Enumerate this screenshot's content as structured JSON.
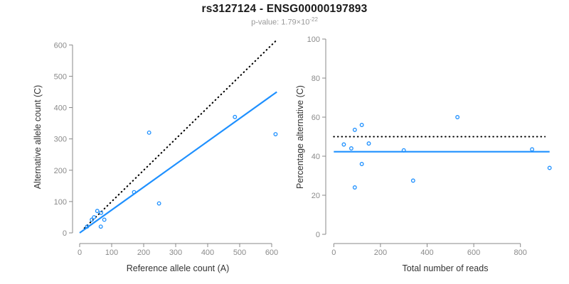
{
  "header": {
    "title": "rs3127124 - ENSG00000197893",
    "pvalue_label": "p-value: 1.79×10",
    "pvalue_exponent": "-22"
  },
  "colors": {
    "accent_blue": "#1E90FF",
    "dotted_black": "#000000",
    "axis_gray": "#888888",
    "tick_label_gray": "#8a8a8a",
    "axis_title_dark": "#333333"
  },
  "chart_data": [
    {
      "type": "scatter",
      "name": "allele-count-scatter",
      "xlabel": "Reference allele count (A)",
      "ylabel": "Alternative allele count (C)",
      "xlim": [
        0,
        600
      ],
      "ylim": [
        0,
        600
      ],
      "xticks": [
        0,
        100,
        200,
        300,
        400,
        500,
        600
      ],
      "yticks": [
        0,
        100,
        200,
        300,
        400,
        500,
        600
      ],
      "grid": false,
      "marker": "open-circle",
      "points": [
        [
          23,
          20
        ],
        [
          38,
          42
        ],
        [
          45,
          50
        ],
        [
          55,
          70
        ],
        [
          67,
          64
        ],
        [
          77,
          42
        ],
        [
          66,
          20
        ],
        [
          170,
          130
        ],
        [
          248,
          94
        ],
        [
          217,
          320
        ],
        [
          485,
          370
        ],
        [
          612,
          315
        ]
      ],
      "lines": [
        {
          "name": "identity-line",
          "style": "dotted",
          "color": "#000000",
          "from": [
            15,
            15
          ],
          "to": [
            612,
            612
          ]
        },
        {
          "name": "regression-line",
          "style": "solid",
          "color": "#1E90FF",
          "from": [
            0,
            0
          ],
          "to": [
            616,
            450
          ]
        }
      ]
    },
    {
      "type": "scatter",
      "name": "percentage-alternative-scatter",
      "xlabel": "Total number of reads",
      "ylabel": "Percentage alternative (C)",
      "xlim": [
        0,
        800
      ],
      "ylim": [
        0,
        100
      ],
      "xticks": [
        0,
        200,
        400,
        600,
        800
      ],
      "yticks": [
        0,
        20,
        40,
        60,
        80,
        100
      ],
      "grid": false,
      "marker": "open-circle",
      "points": [
        [
          43,
          46
        ],
        [
          75,
          44
        ],
        [
          90,
          53.5
        ],
        [
          120,
          56
        ],
        [
          150,
          46.5
        ],
        [
          120,
          36
        ],
        [
          90,
          24
        ],
        [
          300,
          43
        ],
        [
          340,
          27.5
        ],
        [
          530,
          60
        ],
        [
          850,
          43.5
        ],
        [
          925,
          34
        ]
      ],
      "lines": [
        {
          "name": "fifty-percent-line",
          "style": "dotted",
          "color": "#000000",
          "from": [
            0,
            50
          ],
          "to": [
            905,
            50
          ]
        },
        {
          "name": "mean-percentage-line",
          "style": "solid",
          "color": "#1E90FF",
          "from": [
            0,
            42.3
          ],
          "to": [
            925,
            42.3
          ]
        }
      ]
    }
  ]
}
